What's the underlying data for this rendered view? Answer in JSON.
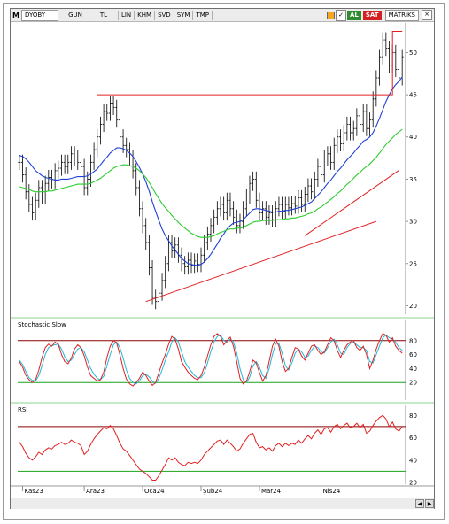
{
  "toolbar": {
    "logo": "M",
    "symbol": "DYOBY",
    "period": "GUN",
    "currency": "TL",
    "items": [
      "LIN",
      "KHM",
      "SVD",
      "SYM",
      "TMP"
    ],
    "check_label": "✓",
    "buy_label": "AL",
    "sell_label": "SAT",
    "matrix_label": "MATRiKS",
    "close_label": "×"
  },
  "colors": {
    "price": "#000000",
    "ema_fast": "#1f3fd6",
    "ema_slow": "#2bcc2b",
    "trendline": "#e02020",
    "stoch_k": "#e02020",
    "stoch_d": "#20b8d8",
    "level_upper": "#8b0000",
    "level_lower": "#1aa31a"
  },
  "chart_data": [
    {
      "type": "candlestick",
      "title": "",
      "x_ticks": [
        "Kas23",
        "Ara23",
        "Oca24",
        "Şub24",
        "Mar24",
        "Nis24"
      ],
      "y_ticks": [
        20,
        25,
        30,
        35,
        40,
        45,
        50
      ],
      "ylim": [
        19,
        53.5
      ],
      "price_close": [
        37,
        35.5,
        33.5,
        32,
        31,
        32.5,
        34,
        33,
        34.5,
        35.2,
        34.8,
        36,
        36.3,
        37,
        36.5,
        37,
        38,
        37.5,
        37,
        36.5,
        34,
        35,
        37,
        38.5,
        40,
        41.5,
        43,
        42.8,
        44,
        43.5,
        42,
        40,
        39,
        38.5,
        37.5,
        36,
        34,
        31.5,
        29.5,
        27.5,
        24.5,
        21,
        20.5,
        21.5,
        23,
        25,
        27.5,
        26.5,
        27.2,
        26,
        25,
        24.6,
        25.4,
        24.8,
        25.3,
        24.9,
        26,
        27.5,
        28.5,
        29.5,
        30.5,
        31.5,
        32,
        31,
        32.5,
        31.5,
        30.5,
        29.5,
        30,
        31.5,
        33,
        34.5,
        35,
        32.5,
        31,
        31.5,
        30.5,
        31,
        30.2,
        31.5,
        32,
        31.2,
        32,
        31.6,
        32.1,
        31.8,
        32.8,
        32,
        33.2,
        34.2,
        33.5,
        35,
        36.5,
        35.5,
        37.5,
        38,
        37,
        39,
        40,
        39.2,
        40.5,
        41.5,
        40.5,
        41,
        42.5,
        41.5,
        43,
        41,
        42,
        44.5,
        47,
        49.5,
        51.5,
        50.5,
        48.5,
        50,
        48,
        47,
        49.5
      ],
      "ema_fast": [
        37.8,
        37.7,
        37.4,
        37,
        36.5,
        36,
        35.7,
        35.4,
        35.2,
        35.1,
        35,
        34.9,
        34.9,
        35,
        35,
        35,
        35.1,
        35.2,
        35.3,
        35.3,
        35.3,
        35.4,
        35.6,
        35.9,
        36.2,
        36.7,
        37.2,
        37.6,
        38.1,
        38.4,
        38.7,
        38.7,
        38.6,
        38.4,
        38.1,
        37.7,
        37.1,
        36.4,
        35.6,
        34.7,
        33.6,
        32.3,
        31.2,
        30.1,
        29.1,
        28.3,
        27.7,
        27.1,
        26.6,
        26.1,
        25.6,
        25.3,
        25,
        24.9,
        24.8,
        24.8,
        24.9,
        25.2,
        25.6,
        26.1,
        26.7,
        27.3,
        28,
        28.5,
        29.1,
        29.5,
        29.8,
        29.9,
        30,
        30.2,
        30.6,
        31,
        31.4,
        31.5,
        31.5,
        31.4,
        31.3,
        31.2,
        31.1,
        31.1,
        31.2,
        31.2,
        31.3,
        31.3,
        31.4,
        31.5,
        31.6,
        31.7,
        31.9,
        32.1,
        32.3,
        32.7,
        33.1,
        33.5,
        34,
        34.5,
        34.9,
        35.4,
        35.9,
        36.3,
        36.8,
        37.3,
        37.7,
        38.1,
        38.6,
        39,
        39.5,
        39.7,
        40,
        40.5,
        41.3,
        42.2,
        43.2,
        44.2,
        45,
        45.7,
        46.2,
        46.6,
        47.1
      ],
      "ema_slow": [
        34.1,
        34,
        33.9,
        33.8,
        33.6,
        33.5,
        33.5,
        33.5,
        33.5,
        33.6,
        33.6,
        33.7,
        33.8,
        33.9,
        34,
        34.1,
        34.2,
        34.3,
        34.4,
        34.4,
        34.4,
        34.4,
        34.5,
        34.7,
        34.9,
        35.1,
        35.4,
        35.7,
        36,
        36.3,
        36.5,
        36.6,
        36.7,
        36.7,
        36.6,
        36.5,
        36.3,
        36,
        35.6,
        35.2,
        34.6,
        34,
        33.3,
        32.7,
        32.1,
        31.6,
        31.2,
        30.7,
        30.3,
        29.9,
        29.5,
        29.2,
        28.9,
        28.6,
        28.4,
        28.2,
        28.1,
        28.1,
        28.1,
        28.2,
        28.3,
        28.5,
        28.7,
        28.8,
        29,
        29.1,
        29.1,
        29.2,
        29.2,
        29.3,
        29.5,
        29.7,
        29.9,
        30,
        30,
        30.1,
        30.1,
        30.1,
        30.1,
        30.2,
        30.2,
        30.2,
        30.3,
        30.3,
        30.4,
        30.4,
        30.5,
        30.6,
        30.7,
        30.9,
        31,
        31.2,
        31.5,
        31.7,
        32,
        32.3,
        32.6,
        32.9,
        33.3,
        33.6,
        34,
        34.4,
        34.7,
        35.1,
        35.5,
        35.8,
        36.2,
        36.5,
        36.8,
        37.2,
        37.6,
        38.1,
        38.6,
        39.1,
        39.5,
        39.9,
        40.3,
        40.6,
        40.9
      ],
      "support_line": [
        [
          39,
          20.5
        ],
        [
          110,
          30
        ],
        [
          117,
          35
        ]
      ],
      "resistance_line": [
        [
          24,
          45
        ],
        [
          115,
          45
        ],
        [
          115,
          52.5
        ],
        [
          118,
          52.5
        ]
      ]
    },
    {
      "type": "line",
      "title": "Stochastic Slow",
      "y_ticks": [
        20,
        40,
        60,
        80
      ],
      "ylim": [
        0,
        100
      ],
      "levels": [
        80,
        20
      ],
      "k": [
        50,
        42,
        30,
        24,
        20,
        24,
        38,
        56,
        70,
        75,
        72,
        78,
        75,
        60,
        50,
        47,
        55,
        68,
        74,
        70,
        58,
        42,
        30,
        26,
        22,
        24,
        35,
        56,
        72,
        80,
        77,
        60,
        40,
        25,
        18,
        15,
        20,
        26,
        35,
        30,
        22,
        16,
        20,
        34,
        48,
        60,
        75,
        86,
        82,
        68,
        50,
        42,
        35,
        30,
        26,
        24,
        30,
        42,
        58,
        74,
        86,
        90,
        86,
        74,
        80,
        85,
        72,
        50,
        26,
        18,
        22,
        36,
        52,
        48,
        34,
        22,
        30,
        50,
        72,
        82,
        72,
        50,
        36,
        40,
        56,
        70,
        68,
        58,
        52,
        62,
        72,
        74,
        66,
        60,
        64,
        74,
        84,
        80,
        66,
        56,
        66,
        74,
        78,
        80,
        70,
        66,
        72,
        60,
        40,
        52,
        68,
        80,
        90,
        88,
        78,
        84,
        72,
        66,
        62
      ],
      "d": [
        52,
        46,
        36,
        27,
        23,
        22,
        30,
        44,
        60,
        70,
        73,
        74,
        75,
        68,
        57,
        50,
        52,
        60,
        68,
        70,
        64,
        52,
        40,
        32,
        26,
        24,
        29,
        44,
        60,
        74,
        78,
        70,
        55,
        38,
        26,
        20,
        18,
        22,
        30,
        32,
        28,
        22,
        19,
        26,
        38,
        52,
        64,
        78,
        84,
        78,
        64,
        50,
        42,
        36,
        30,
        27,
        27,
        34,
        48,
        64,
        78,
        86,
        88,
        80,
        78,
        82,
        78,
        62,
        40,
        24,
        20,
        28,
        44,
        50,
        42,
        30,
        26,
        40,
        60,
        76,
        76,
        62,
        44,
        38,
        48,
        62,
        68,
        64,
        56,
        58,
        66,
        72,
        70,
        64,
        62,
        70,
        78,
        82,
        74,
        62,
        60,
        70,
        76,
        78,
        74,
        70,
        70,
        66,
        50,
        48,
        60,
        72,
        84,
        88,
        84,
        82,
        78,
        70,
        66
      ]
    },
    {
      "type": "line",
      "title": "RSI",
      "y_ticks": [
        20,
        40,
        60,
        80
      ],
      "ylim": [
        20,
        85
      ],
      "levels": [
        70,
        30
      ],
      "values": [
        56,
        52,
        46,
        42,
        40,
        43,
        47,
        45,
        49,
        51,
        50,
        53,
        54,
        56,
        54,
        55,
        58,
        56,
        55,
        53,
        45,
        48,
        54,
        59,
        63,
        66,
        69,
        68,
        71,
        68,
        62,
        55,
        50,
        48,
        44,
        40,
        36,
        32,
        30,
        28,
        25,
        22,
        22,
        26,
        31,
        36,
        42,
        40,
        42,
        38,
        36,
        35,
        38,
        37,
        38,
        37,
        40,
        45,
        48,
        51,
        54,
        57,
        58,
        54,
        58,
        55,
        52,
        48,
        50,
        55,
        59,
        63,
        64,
        56,
        51,
        52,
        49,
        51,
        48,
        53,
        55,
        52,
        55,
        53,
        55,
        54,
        58,
        55,
        59,
        62,
        59,
        64,
        67,
        63,
        68,
        69,
        65,
        70,
        72,
        68,
        71,
        73,
        69,
        70,
        73,
        69,
        72,
        64,
        66,
        71,
        75,
        78,
        80,
        77,
        70,
        74,
        68,
        66,
        70
      ]
    }
  ]
}
